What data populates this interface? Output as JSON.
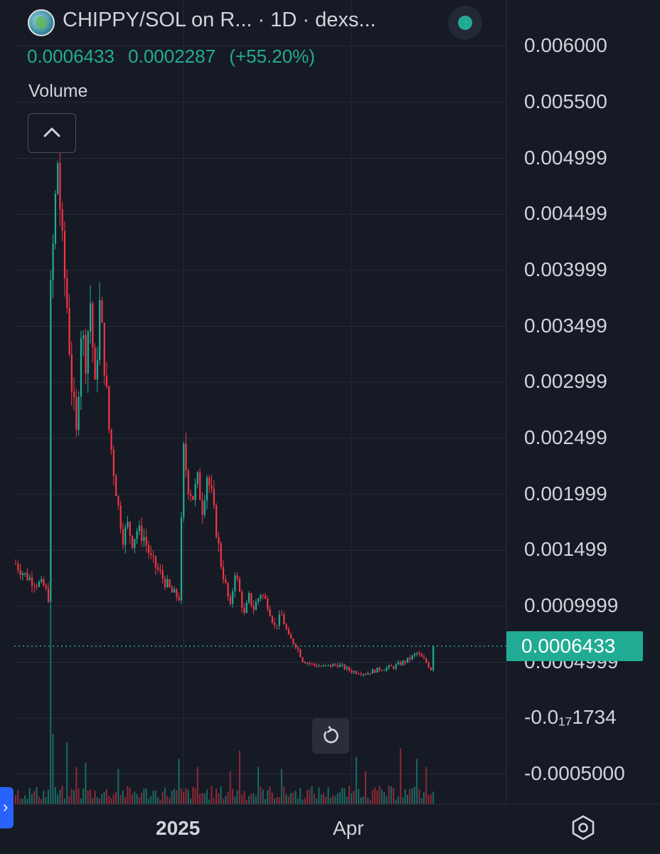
{
  "header": {
    "symbol": "CHIPPY/SOL on R...",
    "separator": "·",
    "interval": "1D",
    "source": "dexs..."
  },
  "ohlc": {
    "last": "0.0006433",
    "change": "0.0002287",
    "change_pct": "(+55.20%)"
  },
  "volume_label": "Volume",
  "colors": {
    "background": "#161a25",
    "up": "#22ab94",
    "down": "#f23645",
    "grid": "#242936",
    "text": "#d1d4dc"
  },
  "icons": {
    "collapse": "chevron-up-icon",
    "reset": "rotate-ccw-icon",
    "settings": "hexagon-gear-icon",
    "side_tab": "chevron-right-icon"
  },
  "chart_data": {
    "type": "candlestick",
    "title": "",
    "x_labels": [
      "2025",
      "Apr"
    ],
    "y_ticks": [
      "0.006000",
      "0.005500",
      "0.004999",
      "0.004499",
      "0.003999",
      "0.003499",
      "0.002999",
      "0.002499",
      "0.001999",
      "0.001499",
      "0.0009999",
      "0.0004999",
      "-0.0₁₇1734",
      "-0.0005000"
    ],
    "y_tick_values": [
      0.006,
      0.0055,
      0.004999,
      0.004499,
      0.003999,
      0.003499,
      0.002999,
      0.002499,
      0.001999,
      0.001499,
      0.0009999,
      0.0004999,
      0.0,
      -0.0005
    ],
    "ylim": [
      -0.00062,
      0.00628
    ],
    "last_price": 0.0006433,
    "last_price_label": "0.0006433",
    "grid": true,
    "series_points": [
      [
        0,
        0.00138
      ],
      [
        4,
        0.00128
      ],
      [
        8,
        0.00122
      ],
      [
        12,
        0.00118
      ],
      [
        14,
        0.00108
      ],
      [
        15,
        0.00378
      ],
      [
        17,
        0.00462
      ],
      [
        18,
        0.00498
      ],
      [
        20,
        0.00418
      ],
      [
        22,
        0.00368
      ],
      [
        24,
        0.00298
      ],
      [
        26,
        0.00252
      ],
      [
        28,
        0.00348
      ],
      [
        30,
        0.00322
      ],
      [
        32,
        0.00372
      ],
      [
        34,
        0.00292
      ],
      [
        36,
        0.00368
      ],
      [
        38,
        0.00318
      ],
      [
        40,
        0.00258
      ],
      [
        42,
        0.00222
      ],
      [
        44,
        0.00188
      ],
      [
        46,
        0.00162
      ],
      [
        48,
        0.00172
      ],
      [
        50,
        0.00158
      ],
      [
        52,
        0.00168
      ],
      [
        55,
        0.00162
      ],
      [
        58,
        0.00142
      ],
      [
        61,
        0.00132
      ],
      [
        64,
        0.00122
      ],
      [
        67,
        0.00112
      ],
      [
        70,
        0.00108
      ],
      [
        72,
        0.00238
      ],
      [
        74,
        0.00208
      ],
      [
        76,
        0.00198
      ],
      [
        78,
        0.00212
      ],
      [
        80,
        0.00188
      ],
      [
        82,
        0.00218
      ],
      [
        84,
        0.00198
      ],
      [
        86,
        0.00168
      ],
      [
        88,
        0.00138
      ],
      [
        90,
        0.00118
      ],
      [
        92,
        0.00098
      ],
      [
        94,
        0.00132
      ],
      [
        96,
        0.00112
      ],
      [
        98,
        0.00092
      ],
      [
        100,
        0.00108
      ],
      [
        102,
        0.00098
      ],
      [
        105,
        0.00112
      ],
      [
        108,
        0.00102
      ],
      [
        111,
        0.00082
      ],
      [
        114,
        0.00092
      ],
      [
        117,
        0.00072
      ],
      [
        120,
        0.00066
      ],
      [
        123,
        0.00052
      ],
      [
        127,
        0.00048
      ],
      [
        132,
        0.00046
      ],
      [
        138,
        0.00048
      ],
      [
        144,
        0.00042
      ],
      [
        150,
        0.0004
      ],
      [
        156,
        0.00044
      ],
      [
        162,
        0.00046
      ],
      [
        168,
        0.00052
      ],
      [
        172,
        0.00058
      ],
      [
        176,
        0.0005
      ],
      [
        178,
        0.00044
      ],
      [
        179,
        0.00064
      ]
    ],
    "volume_points": [
      [
        15,
        0.96
      ],
      [
        16,
        0.34
      ],
      [
        22,
        0.3
      ],
      [
        26,
        0.18
      ],
      [
        30,
        0.2
      ],
      [
        44,
        0.17
      ],
      [
        70,
        0.22
      ],
      [
        78,
        0.18
      ],
      [
        92,
        0.16
      ],
      [
        96,
        0.26
      ],
      [
        104,
        0.18
      ],
      [
        114,
        0.17
      ],
      [
        146,
        0.23
      ],
      [
        150,
        0.16
      ],
      [
        165,
        0.27
      ],
      [
        172,
        0.22
      ],
      [
        176,
        0.18
      ]
    ]
  },
  "axis_settings_label": ""
}
